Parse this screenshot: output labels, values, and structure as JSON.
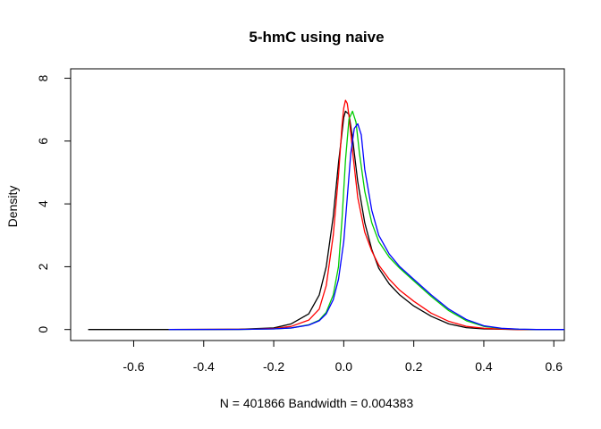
{
  "chart_data": {
    "type": "line",
    "title": "5-hmC using naive",
    "xlabel": "N = 401866   Bandwidth = 0.004383",
    "ylabel": "Density",
    "xlim": [
      -0.78,
      0.63
    ],
    "ylim": [
      -0.35,
      8.3
    ],
    "x_ticks": [
      -0.6,
      -0.4,
      -0.2,
      0.0,
      0.2,
      0.4,
      0.6
    ],
    "x_tick_labels": [
      "-0.6",
      "-0.4",
      "-0.2",
      "0.0",
      "0.2",
      "0.4",
      "0.6"
    ],
    "y_ticks": [
      0,
      2,
      4,
      6,
      8
    ],
    "y_tick_labels": [
      "0",
      "2",
      "4",
      "6",
      "8"
    ],
    "grid": false,
    "series": [
      {
        "color": "#000000",
        "x": [
          -0.73,
          -0.5,
          -0.3,
          -0.2,
          -0.15,
          -0.1,
          -0.07,
          -0.05,
          -0.03,
          -0.015,
          0.0,
          0.005,
          0.015,
          0.025,
          0.04,
          0.06,
          0.08,
          0.1,
          0.13,
          0.16,
          0.2,
          0.25,
          0.3,
          0.35,
          0.4,
          0.45,
          0.5,
          0.6,
          0.63
        ],
        "y": [
          0,
          0,
          0.01,
          0.05,
          0.18,
          0.5,
          1.1,
          2.0,
          3.6,
          5.3,
          6.75,
          6.95,
          6.85,
          6.1,
          4.7,
          3.4,
          2.55,
          1.95,
          1.45,
          1.1,
          0.75,
          0.42,
          0.18,
          0.06,
          0.02,
          0.01,
          0,
          0,
          0
        ]
      },
      {
        "color": "#ff0000",
        "x": [
          -0.5,
          -0.3,
          -0.2,
          -0.15,
          -0.1,
          -0.07,
          -0.05,
          -0.03,
          -0.015,
          -0.005,
          0.0,
          0.005,
          0.01,
          0.015,
          0.025,
          0.04,
          0.06,
          0.08,
          0.1,
          0.13,
          0.16,
          0.2,
          0.25,
          0.3,
          0.35,
          0.4,
          0.45,
          0.5,
          0.63
        ],
        "y": [
          0,
          0.005,
          0.03,
          0.1,
          0.3,
          0.65,
          1.4,
          3.0,
          4.9,
          6.5,
          7.05,
          7.3,
          7.2,
          6.8,
          5.7,
          4.2,
          3.1,
          2.5,
          2.05,
          1.6,
          1.25,
          0.9,
          0.52,
          0.26,
          0.1,
          0.04,
          0.015,
          0,
          0
        ]
      },
      {
        "color": "#00cd00",
        "x": [
          -0.5,
          -0.3,
          -0.2,
          -0.15,
          -0.1,
          -0.07,
          -0.05,
          -0.03,
          -0.015,
          -0.005,
          0.005,
          0.015,
          0.025,
          0.035,
          0.045,
          0.06,
          0.08,
          0.1,
          0.13,
          0.16,
          0.2,
          0.25,
          0.3,
          0.35,
          0.4,
          0.45,
          0.5,
          0.55,
          0.63
        ],
        "y": [
          0,
          0.003,
          0.02,
          0.05,
          0.15,
          0.3,
          0.55,
          1.1,
          2.0,
          3.5,
          5.4,
          6.7,
          6.95,
          6.6,
          5.6,
          4.4,
          3.4,
          2.8,
          2.3,
          1.95,
          1.55,
          1.05,
          0.6,
          0.28,
          0.1,
          0.035,
          0.01,
          0,
          0
        ]
      },
      {
        "color": "#0000ff",
        "x": [
          -0.5,
          -0.3,
          -0.2,
          -0.15,
          -0.1,
          -0.07,
          -0.05,
          -0.03,
          -0.015,
          0.0,
          0.01,
          0.02,
          0.03,
          0.04,
          0.05,
          0.06,
          0.08,
          0.1,
          0.13,
          0.16,
          0.2,
          0.25,
          0.3,
          0.35,
          0.4,
          0.45,
          0.5,
          0.55,
          0.63
        ],
        "y": [
          0,
          0.003,
          0.02,
          0.05,
          0.14,
          0.28,
          0.5,
          0.95,
          1.6,
          2.8,
          4.2,
          5.6,
          6.4,
          6.55,
          6.2,
          5.1,
          3.8,
          3.0,
          2.4,
          2.0,
          1.6,
          1.1,
          0.65,
          0.32,
          0.12,
          0.04,
          0.012,
          0,
          0
        ]
      }
    ]
  }
}
